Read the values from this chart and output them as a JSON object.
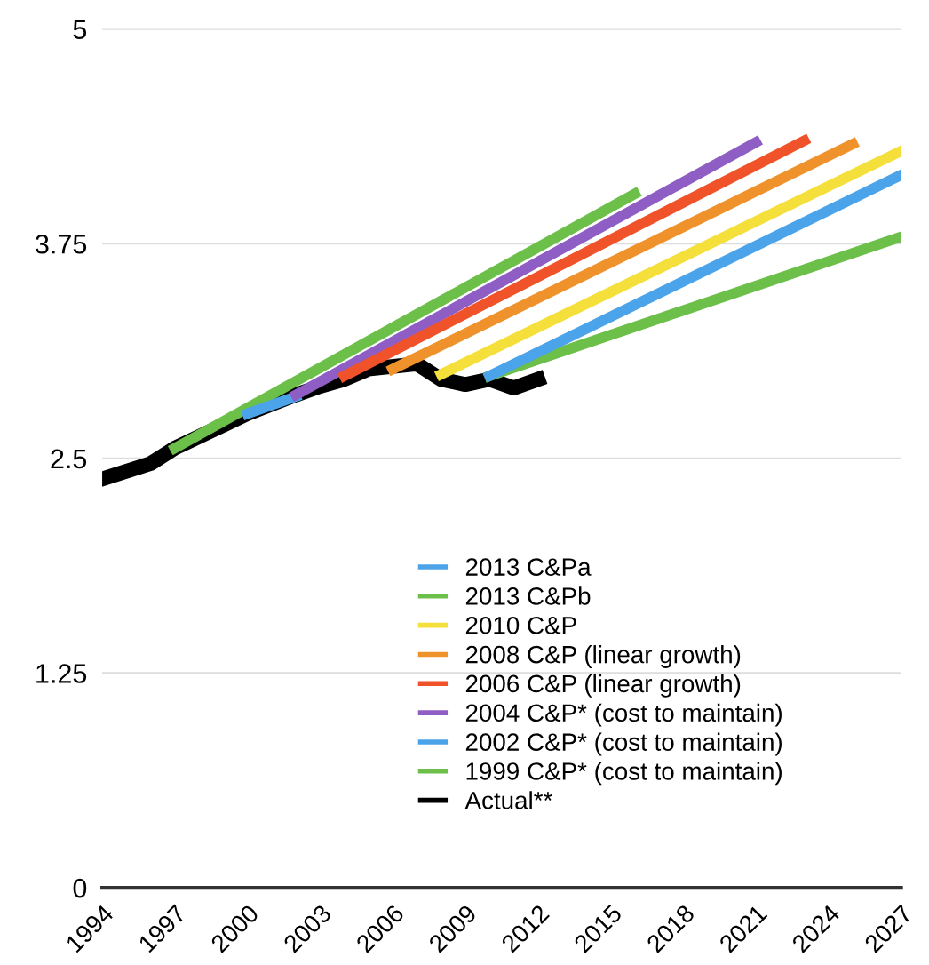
{
  "chart_data": {
    "type": "line",
    "series": [
      {
        "name": "2013 C&Pa",
        "color": "#4ba3e9",
        "x": [
          2010,
          2027
        ],
        "values": [
          2.98,
          4.15
        ]
      },
      {
        "name": "2013 C&Pb",
        "color": "#6cc04a",
        "x": [
          2010,
          2027
        ],
        "values": [
          2.98,
          3.79
        ]
      },
      {
        "name": "2010 C&P",
        "color": "#f5df3a",
        "x": [
          2008,
          2027
        ],
        "values": [
          2.99,
          4.29
        ]
      },
      {
        "name": "2008 C&P (linear growth)",
        "color": "#f0922b",
        "x": [
          2006,
          2025
        ],
        "values": [
          3.02,
          4.33
        ]
      },
      {
        "name": "2006 C&P (linear growth)",
        "color": "#f0532a",
        "x": [
          2004,
          2023
        ],
        "values": [
          2.98,
          4.35
        ]
      },
      {
        "name": "2004 C&P* (cost to maintain)",
        "color": "#8e5ec4",
        "x": [
          2002,
          2021
        ],
        "values": [
          2.87,
          4.34
        ]
      },
      {
        "name": "2002 C&P* (cost to maintain)",
        "color": "#4ba3e9",
        "x": [
          2000,
          2002
        ],
        "values": [
          2.76,
          2.86
        ]
      },
      {
        "name": "1999 C&P* (cost to maintain)",
        "color": "#6cc04a",
        "x": [
          1997,
          2016
        ],
        "values": [
          2.56,
          4.04
        ]
      },
      {
        "name": "Actual**",
        "color": "#000000",
        "x": [
          1994,
          1996,
          1997,
          2000,
          2002,
          2003,
          2004,
          2005,
          2007,
          2008,
          2009,
          2010,
          2011,
          2012
        ],
        "values": [
          2.38,
          2.47,
          2.56,
          2.76,
          2.87,
          2.92,
          2.96,
          3.02,
          3.05,
          2.96,
          2.93,
          2.96,
          2.91,
          2.96
        ]
      }
    ],
    "xlim": [
      1994,
      2027
    ],
    "xticks": [
      1994,
      1997,
      2000,
      2003,
      2006,
      2009,
      2012,
      2015,
      2018,
      2021,
      2024,
      2027
    ],
    "ylim": [
      0,
      5
    ],
    "yticks": [
      0,
      1.25,
      2.5,
      3.75,
      5
    ],
    "grid": "y",
    "legend": "bottom right",
    "marker": "none",
    "line_style": "solid"
  }
}
